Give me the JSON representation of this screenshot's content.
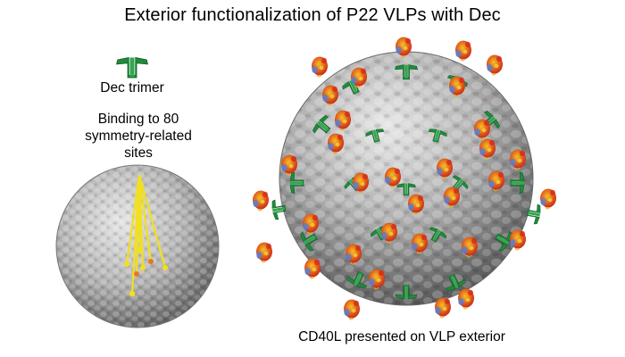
{
  "title": "Exterior functionalization of P22 VLPs with Dec",
  "dec_trimer_label": "Dec trimer",
  "binding_label": {
    "line1": "Binding to 80",
    "line2": "symmetry-related",
    "line3": "sites"
  },
  "cd40l_label": "CD40L presented on VLP exterior",
  "colors": {
    "dec_green": "#1f8a3c",
    "capsid_gray": "#b4b4b4",
    "marker_yellow": "#f2e01c",
    "cd40l_orange": "#e8781c",
    "cd40l_red": "#d42a1a",
    "cd40l_blue": "#5b7fd0"
  },
  "icons": [
    "dec-trimer-icon",
    "small-capsid",
    "large-capsid",
    "binding-site-marker",
    "cd40l-protein"
  ]
}
